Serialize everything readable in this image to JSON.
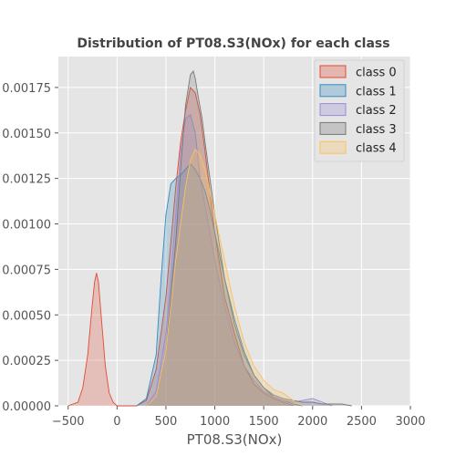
{
  "chart_data": {
    "type": "area",
    "title": "Distribution of PT08.S3(NOx) for each class",
    "xlabel": "PT08.S3(NOx)",
    "ylabel": "",
    "xlim": [
      -600,
      3000
    ],
    "ylim": [
      0,
      0.00192
    ],
    "xticks": [
      -500,
      0,
      500,
      1000,
      1500,
      2000,
      2500,
      3000
    ],
    "xtick_labels": [
      "−500",
      "0",
      "500",
      "1000",
      "1500",
      "2000",
      "2500",
      "3000"
    ],
    "yticks": [
      0,
      0.00025,
      0.0005,
      0.00075,
      0.001,
      0.00125,
      0.0015,
      0.00175
    ],
    "ytick_labels": [
      "0.00000",
      "0.00025",
      "0.00050",
      "0.00075",
      "0.00100",
      "0.00125",
      "0.00150",
      "0.00175"
    ],
    "grid": true,
    "legend_position": "top-right",
    "series": [
      {
        "name": "class 0",
        "color": "#E24A33",
        "x": [
          -500,
          -400,
          -350,
          -300,
          -260,
          -230,
          -210,
          -190,
          -160,
          -120,
          -80,
          -40,
          0,
          50,
          100,
          200,
          300,
          400,
          500,
          550,
          600,
          650,
          700,
          750,
          800,
          850,
          900,
          1000,
          1100,
          1200,
          1300,
          1400,
          1500,
          1600,
          1700,
          1800
        ],
        "y": [
          0,
          2e-05,
          0.0001,
          0.00028,
          0.00052,
          0.00068,
          0.00073,
          0.00068,
          0.00048,
          0.00022,
          7e-05,
          2e-05,
          0,
          0,
          0,
          0,
          3e-05,
          0.0002,
          0.0006,
          0.0009,
          0.0012,
          0.00145,
          0.00162,
          0.00175,
          0.00172,
          0.0016,
          0.0014,
          0.00095,
          0.0006,
          0.0004,
          0.00022,
          0.00012,
          7e-05,
          4e-05,
          2e-05,
          0
        ]
      },
      {
        "name": "class 1",
        "color": "#348ABD",
        "x": [
          200,
          300,
          400,
          450,
          500,
          550,
          600,
          650,
          700,
          750,
          800,
          850,
          900,
          950,
          1000,
          1100,
          1200,
          1300,
          1400,
          1500,
          1600,
          1700,
          1800,
          1900
        ],
        "y": [
          0,
          4e-05,
          0.00028,
          0.0007,
          0.00105,
          0.00122,
          0.00125,
          0.00127,
          0.0013,
          0.00133,
          0.0013,
          0.00125,
          0.00118,
          0.00108,
          0.00095,
          0.0007,
          0.00048,
          0.0003,
          0.00017,
          0.0001,
          5e-05,
          3e-05,
          1e-05,
          0
        ]
      },
      {
        "name": "class 2",
        "color": "#988ED5",
        "x": [
          300,
          400,
          500,
          550,
          600,
          650,
          700,
          750,
          800,
          850,
          900,
          950,
          1000,
          1100,
          1200,
          1300,
          1400,
          1500,
          1600,
          1700,
          1800,
          1900,
          2000,
          2100,
          2200
        ],
        "y": [
          0,
          8e-05,
          0.0004,
          0.0007,
          0.00105,
          0.0014,
          0.00158,
          0.0016,
          0.0015,
          0.00125,
          0.0011,
          0.00095,
          0.0008,
          0.00055,
          0.00035,
          0.00022,
          0.00014,
          8e-05,
          5e-05,
          3e-05,
          2e-05,
          3e-05,
          4e-05,
          2e-05,
          0
        ]
      },
      {
        "name": "class 3",
        "color": "#777777",
        "x": [
          300,
          400,
          500,
          550,
          600,
          650,
          700,
          750,
          780,
          800,
          830,
          870,
          900,
          950,
          1000,
          1100,
          1200,
          1300,
          1400,
          1500,
          1600,
          1700,
          1800,
          1900,
          2000,
          2100,
          2300,
          2400
        ],
        "y": [
          0,
          5e-05,
          0.0003,
          0.0006,
          0.0009,
          0.0013,
          0.00165,
          0.00182,
          0.00184,
          0.0018,
          0.0017,
          0.00158,
          0.00145,
          0.00125,
          0.00105,
          0.0007,
          0.00045,
          0.00028,
          0.00017,
          0.0001,
          6e-05,
          4e-05,
          3e-05,
          2e-05,
          2e-05,
          1e-05,
          1e-05,
          0
        ]
      },
      {
        "name": "class 4",
        "color": "#FBC15E",
        "x": [
          300,
          400,
          500,
          600,
          700,
          750,
          800,
          850,
          900,
          1000,
          1100,
          1200,
          1300,
          1400,
          1500,
          1600,
          1700,
          1800,
          1900
        ],
        "y": [
          0,
          5e-05,
          0.0003,
          0.0008,
          0.0012,
          0.00135,
          0.00141,
          0.00138,
          0.0013,
          0.00105,
          0.0008,
          0.00055,
          0.00035,
          0.00022,
          0.00014,
          9e-05,
          7e-05,
          3e-05,
          0
        ]
      }
    ]
  }
}
